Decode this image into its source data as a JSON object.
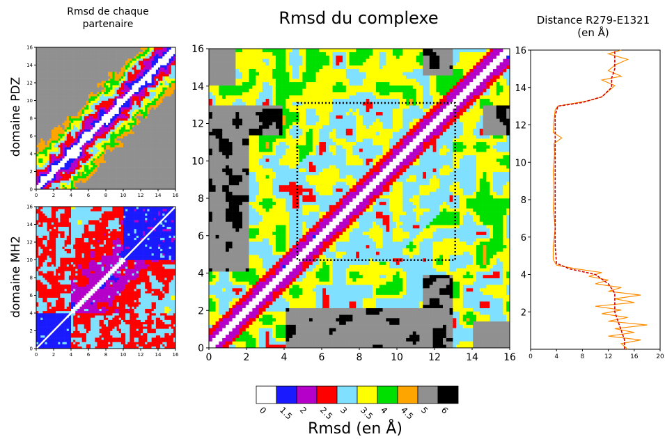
{
  "titles": {
    "left": "Rmsd de chaque\npartenaire",
    "center": "Rmsd du complexe",
    "right": "Distance R279-E1321\n(en Å)"
  },
  "ylabels": {
    "pdz": "domaine PDZ",
    "mh2": "domaine MH2"
  },
  "colorbar": {
    "label": "Rmsd (en Å)",
    "ticks": [
      "0",
      "1.5",
      "2",
      "2.5",
      "3",
      "3.5",
      "4",
      "4.5",
      "5",
      "6"
    ],
    "colors": [
      "#ffffff",
      "#1a1aff",
      "#b400c8",
      "#ff0000",
      "#80e0ff",
      "#ffff00",
      "#00e000",
      "#ffa500",
      "#909090",
      "#000000"
    ]
  },
  "chart_data": [
    {
      "type": "heatmap",
      "name": "domaine PDZ",
      "xlim": [
        0,
        16
      ],
      "ylim": [
        0,
        16
      ],
      "xticks": [
        "0",
        "2",
        "4",
        "6",
        "8",
        "10",
        "12",
        "14",
        "16"
      ],
      "yticks": [
        "0",
        "2",
        "4",
        "6",
        "8",
        "10",
        "12",
        "14",
        "16"
      ]
    },
    {
      "type": "heatmap",
      "name": "domaine MH2",
      "xlim": [
        0,
        16
      ],
      "ylim": [
        0,
        16
      ],
      "xticks": [
        "0",
        "2",
        "4",
        "6",
        "8",
        "10",
        "12",
        "14",
        "16"
      ],
      "yticks": [
        "0",
        "2",
        "4",
        "6",
        "8",
        "10",
        "12",
        "14",
        "16"
      ]
    },
    {
      "type": "heatmap",
      "title": "Rmsd du complexe",
      "xlim": [
        0,
        16
      ],
      "ylim": [
        0,
        16
      ],
      "xticks": [
        "0",
        "2",
        "4",
        "6",
        "8",
        "10",
        "12",
        "14",
        "16"
      ],
      "yticks": [
        "0",
        "2",
        "4",
        "6",
        "8",
        "10",
        "12",
        "14",
        "16"
      ],
      "highlight_box": {
        "x": [
          4.7,
          13.1
        ],
        "y": [
          4.7,
          13.1
        ]
      }
    },
    {
      "type": "line",
      "title": "Distance R279-E1321\n(en Å)",
      "xlim": [
        0,
        20
      ],
      "ylim": [
        0,
        16
      ],
      "xticks": [
        "0",
        "4",
        "8",
        "12",
        "16",
        "20"
      ],
      "yticks": [
        "2",
        "4",
        "6",
        "8",
        "10",
        "12",
        "14",
        "16"
      ],
      "series": [
        {
          "color": "#ff8c00",
          "points": [
            [
              15,
              0.0
            ],
            [
              14,
              0.3
            ],
            [
              17,
              0.5
            ],
            [
              12,
              0.7
            ],
            [
              16,
              0.9
            ],
            [
              13,
              1.1
            ],
            [
              18,
              1.3
            ],
            [
              12,
              1.5
            ],
            [
              15,
              1.7
            ],
            [
              11,
              1.9
            ],
            [
              14,
              2.1
            ],
            [
              10,
              2.3
            ],
            [
              16,
              2.5
            ],
            [
              13,
              2.7
            ],
            [
              17,
              2.9
            ],
            [
              12,
              3.1
            ],
            [
              14,
              3.3
            ],
            [
              10,
              3.5
            ],
            [
              12,
              3.7
            ],
            [
              9,
              3.9
            ],
            [
              11,
              4.1
            ],
            [
              7,
              4.3
            ],
            [
              4,
              4.5
            ],
            [
              3.5,
              4.8
            ],
            [
              3.5,
              5.5
            ],
            [
              3.8,
              6.5
            ],
            [
              3.5,
              7.5
            ],
            [
              3.6,
              8.5
            ],
            [
              3.5,
              9.5
            ],
            [
              3.7,
              10.5
            ],
            [
              3.6,
              11.0
            ],
            [
              4.8,
              11.3
            ],
            [
              3.5,
              11.6
            ],
            [
              3.6,
              12.2
            ],
            [
              3.8,
              12.8
            ],
            [
              4.2,
              13.0
            ],
            [
              9,
              13.3
            ],
            [
              11,
              13.5
            ],
            [
              12,
              13.8
            ],
            [
              13,
              14.1
            ],
            [
              11,
              14.4
            ],
            [
              14,
              14.6
            ],
            [
              12,
              14.9
            ],
            [
              13,
              15.2
            ],
            [
              15,
              15.5
            ],
            [
              12,
              15.8
            ],
            [
              14,
              16.0
            ]
          ]
        },
        {
          "color": "#c80000",
          "points": [
            [
              14.5,
              0.0
            ],
            [
              14.5,
              0.5
            ],
            [
              14,
              1.0
            ],
            [
              13.5,
              1.5
            ],
            [
              13,
              2.0
            ],
            [
              13,
              2.5
            ],
            [
              13,
              3.0
            ],
            [
              12,
              3.5
            ],
            [
              10,
              4.0
            ],
            [
              6,
              4.3
            ],
            [
              4,
              4.6
            ],
            [
              3.8,
              5.5
            ],
            [
              3.8,
              7
            ],
            [
              3.8,
              9
            ],
            [
              3.8,
              11
            ],
            [
              3.8,
              12.5
            ],
            [
              4.2,
              13.0
            ],
            [
              8,
              13.2
            ],
            [
              11,
              13.5
            ],
            [
              12.5,
              14.0
            ],
            [
              12.5,
              14.5
            ],
            [
              13,
              15.0
            ],
            [
              13,
              15.5
            ],
            [
              13,
              16.0
            ]
          ]
        }
      ]
    }
  ]
}
